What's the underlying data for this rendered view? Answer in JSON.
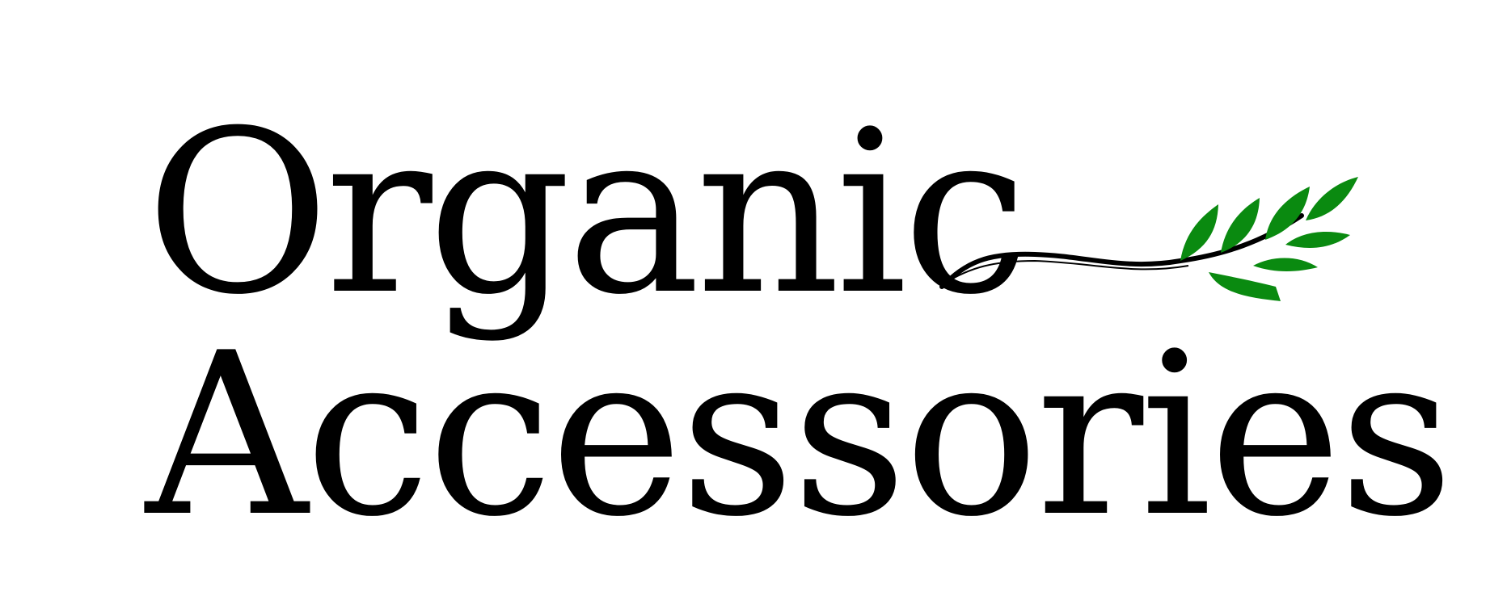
{
  "logo": {
    "line_1": "Organic",
    "line_2": "Accessories",
    "colors": {
      "text": "#000000",
      "leaf": "#0a8a10",
      "stem": "#000000",
      "background": "#ffffff"
    },
    "icon": "olive-branch-icon"
  }
}
